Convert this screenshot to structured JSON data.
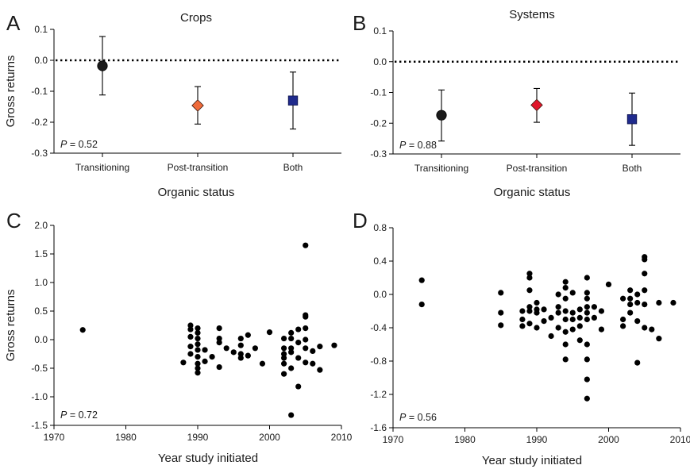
{
  "chart_data": [
    {
      "id": "A",
      "type": "scatter",
      "panel_letter": "A",
      "title": "Crops",
      "ylabel": "Gross returns",
      "xlabel": "",
      "ylim": [
        -0.3,
        0.1
      ],
      "yticks": [
        "0.1",
        "0.0",
        "-0.1",
        "-0.2",
        "-0.3"
      ],
      "ytick_values": [
        0.1,
        0.0,
        -0.1,
        -0.2,
        -0.3
      ],
      "categories": [
        "Transitioning",
        "Post-transition",
        "Both"
      ],
      "points": [
        {
          "category": "Transitioning",
          "value": -0.018,
          "lower": -0.112,
          "upper": 0.077,
          "marker": "circle",
          "color": "#1a1a1a"
        },
        {
          "category": "Post-transition",
          "value": -0.146,
          "lower": -0.206,
          "upper": -0.085,
          "marker": "diamond",
          "color": "#ef6a3a"
        },
        {
          "category": "Both",
          "value": -0.13,
          "lower": -0.222,
          "upper": -0.038,
          "marker": "square",
          "color": "#1f2a8c"
        }
      ],
      "reference_line": 0.0,
      "annotation": {
        "label": "P",
        "text": " = 0.52"
      },
      "grid": false
    },
    {
      "id": "B",
      "type": "scatter",
      "panel_letter": "B",
      "title": "Systems",
      "ylabel": "",
      "xlabel": "",
      "ylim": [
        -0.3,
        0.1
      ],
      "yticks": [
        "0.1",
        "0.0",
        "-0.1",
        "-0.2",
        "-0.3"
      ],
      "ytick_values": [
        0.1,
        0.0,
        -0.1,
        -0.2,
        -0.3
      ],
      "categories": [
        "Transitioning",
        "Post-transition",
        "Both"
      ],
      "points": [
        {
          "category": "Transitioning",
          "value": -0.174,
          "lower": -0.258,
          "upper": -0.092,
          "marker": "circle",
          "color": "#1a1a1a"
        },
        {
          "category": "Post-transition",
          "value": -0.141,
          "lower": -0.197,
          "upper": -0.087,
          "marker": "diamond",
          "color": "#e0152a"
        },
        {
          "category": "Both",
          "value": -0.187,
          "lower": -0.272,
          "upper": -0.102,
          "marker": "square",
          "color": "#1f2a8c"
        }
      ],
      "reference_line": 0.0,
      "annotation": {
        "label": "P",
        "text": " = 0.88"
      },
      "grid": false
    },
    {
      "id": "C",
      "type": "scatter",
      "panel_letter": "C",
      "title": "Organic status",
      "ylabel": "Gross returns",
      "xlabel": "Year study initiated",
      "xlim": [
        1970,
        2010
      ],
      "xticks": [
        "1970",
        "1980",
        "1990",
        "2000",
        "2010"
      ],
      "xtick_values": [
        1970,
        1980,
        1990,
        2000,
        2010
      ],
      "ylim": [
        -1.5,
        2.0
      ],
      "yticks": [
        "2.0",
        "1.5",
        "1.0",
        "0.5",
        "0.0",
        "-0.5",
        "-1.0",
        "-1.5"
      ],
      "ytick_values": [
        2.0,
        1.5,
        1.0,
        0.5,
        0.0,
        -0.5,
        -1.0,
        -1.5
      ],
      "x": [
        1974,
        1988,
        1989,
        1989,
        1989,
        1989,
        1989,
        1990,
        1990,
        1990,
        1990,
        1990,
        1990,
        1990,
        1990,
        1990,
        1991,
        1991,
        1992,
        1993,
        1993,
        1993,
        1993,
        1994,
        1995,
        1996,
        1996,
        1996,
        1996,
        1997,
        1997,
        1998,
        1999,
        2000,
        2002,
        2002,
        2002,
        2002,
        2002,
        2002,
        2003,
        2003,
        2003,
        2003,
        2003,
        2003,
        2004,
        2004,
        2004,
        2004,
        2005,
        2005,
        2005,
        2005,
        2005,
        2005,
        2005,
        2006,
        2006,
        2007,
        2007,
        2009
      ],
      "y": [
        0.17,
        -0.4,
        0.25,
        0.18,
        0.05,
        -0.12,
        -0.25,
        0.2,
        0.12,
        0.02,
        -0.08,
        -0.18,
        -0.3,
        -0.42,
        -0.5,
        -0.58,
        -0.18,
        -0.38,
        -0.3,
        0.2,
        0.02,
        -0.05,
        -0.48,
        -0.15,
        -0.22,
        0.02,
        -0.1,
        -0.25,
        -0.32,
        0.08,
        -0.28,
        -0.15,
        -0.42,
        0.13,
        0.02,
        -0.15,
        -0.25,
        -0.32,
        -0.42,
        -0.6,
        0.12,
        0.02,
        -0.15,
        -0.22,
        -0.5,
        -1.32,
        0.18,
        -0.05,
        -0.32,
        -0.82,
        1.65,
        0.43,
        0.4,
        0.2,
        0.0,
        -0.15,
        -0.4,
        -0.2,
        -0.42,
        -0.12,
        -0.53,
        -0.1
      ],
      "annotation": {
        "label": "P",
        "text": " = 0.72"
      },
      "grid": false
    },
    {
      "id": "D",
      "type": "scatter",
      "panel_letter": "D",
      "title": "Organic status",
      "ylabel": "",
      "xlabel": "Year study initiated",
      "xlim": [
        1970,
        2010
      ],
      "xticks": [
        "1970",
        "1980",
        "1990",
        "2000",
        "2010"
      ],
      "xtick_values": [
        1970,
        1980,
        1990,
        2000,
        2010
      ],
      "ylim": [
        -1.6,
        0.8
      ],
      "yticks": [
        "0.8",
        "0.4",
        "0.0",
        "-0.4",
        "-0.8",
        "-1.2",
        "-1.6"
      ],
      "ytick_values": [
        0.8,
        0.4,
        0.0,
        -0.4,
        -0.8,
        -1.2,
        -1.6
      ],
      "x": [
        1974,
        1974,
        1985,
        1985,
        1985,
        1988,
        1988,
        1988,
        1989,
        1989,
        1989,
        1989,
        1989,
        1989,
        1990,
        1990,
        1990,
        1990,
        1991,
        1991,
        1992,
        1992,
        1993,
        1993,
        1993,
        1993,
        1994,
        1994,
        1994,
        1994,
        1994,
        1994,
        1994,
        1994,
        1995,
        1995,
        1995,
        1995,
        1996,
        1996,
        1996,
        1996,
        1997,
        1997,
        1997,
        1997,
        1997,
        1997,
        1997,
        1997,
        1997,
        1997,
        1998,
        1998,
        1999,
        1999,
        2000,
        2002,
        2002,
        2002,
        2003,
        2003,
        2003,
        2003,
        2004,
        2004,
        2004,
        2004,
        2005,
        2005,
        2005,
        2005,
        2005,
        2005,
        2006,
        2007,
        2007,
        2009
      ],
      "y": [
        0.17,
        -0.12,
        0.02,
        -0.22,
        -0.37,
        -0.2,
        -0.3,
        -0.38,
        0.25,
        0.2,
        0.05,
        -0.15,
        -0.2,
        -0.35,
        -0.1,
        -0.18,
        -0.22,
        -0.4,
        -0.18,
        -0.32,
        -0.28,
        -0.5,
        0.0,
        -0.15,
        -0.22,
        -0.4,
        0.15,
        0.08,
        -0.05,
        -0.2,
        -0.3,
        -0.45,
        -0.6,
        -0.78,
        0.02,
        -0.22,
        -0.3,
        -0.42,
        -0.18,
        -0.28,
        -0.38,
        -0.55,
        0.2,
        0.02,
        -0.05,
        -0.15,
        -0.22,
        -0.3,
        -0.6,
        -0.78,
        -1.02,
        -1.25,
        -0.15,
        -0.28,
        -0.2,
        -0.42,
        0.12,
        -0.05,
        -0.3,
        -0.38,
        0.05,
        -0.05,
        -0.12,
        -0.22,
        0.0,
        -0.1,
        -0.32,
        -0.82,
        0.45,
        0.42,
        0.25,
        0.05,
        -0.12,
        -0.4,
        -0.42,
        -0.1,
        -0.53,
        -0.1
      ],
      "annotation": {
        "label": "P",
        "text": " = 0.56"
      },
      "grid": false
    }
  ]
}
